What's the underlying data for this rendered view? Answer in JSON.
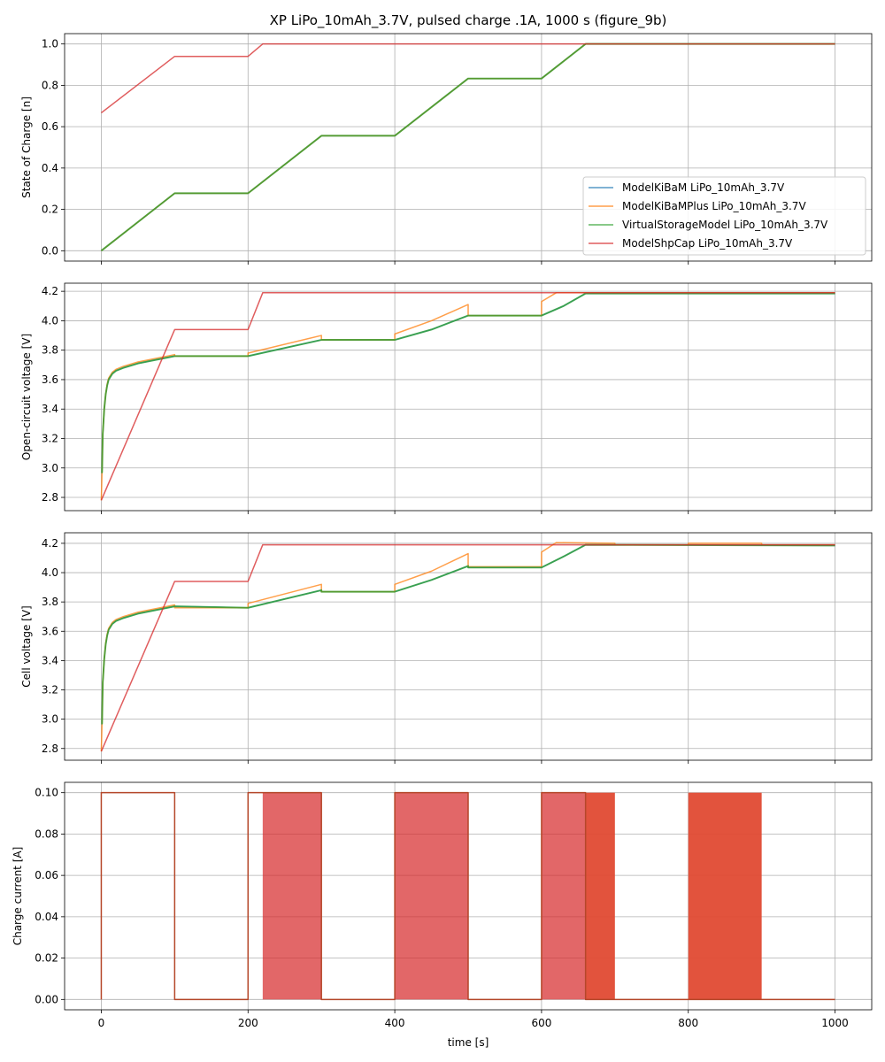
{
  "title": "XP LiPo_10mAh_3.7V, pulsed charge .1A, 1000 s (figure_9b)",
  "colors": {
    "ModelKiBaM": "#1f77b4",
    "ModelKiBaMPlus": "#ff7f0e",
    "VirtualStorageModel": "#2ca02c",
    "ModelShpCap": "#d62728",
    "overlap_fill": "#e04a33",
    "overlap_line": "#b5472a"
  },
  "chart_data": [
    {
      "type": "line",
      "ylabel": "State of Charge [n]",
      "xlim": [
        -50,
        1050
      ],
      "ylim": [
        -0.05,
        1.05
      ],
      "yticks": [
        "0.0",
        "0.2",
        "0.4",
        "0.6",
        "0.8",
        "1.0"
      ],
      "yvals": [
        0,
        0.2,
        0.4,
        0.6,
        0.8,
        1.0
      ],
      "grid": true,
      "legend": "lower-right",
      "series": [
        {
          "name": "ModelKiBaM LiPo_10mAh_3.7V",
          "key": "ModelKiBaM",
          "x": [
            0,
            100,
            200,
            300,
            400,
            500,
            600,
            660,
            1000
          ],
          "y": [
            0,
            0.278,
            0.278,
            0.556,
            0.556,
            0.833,
            0.833,
            1,
            1
          ]
        },
        {
          "name": "ModelKiBaMPlus LiPo_10mAh_3.7V",
          "key": "ModelKiBaMPlus",
          "x": [
            0,
            100,
            200,
            300,
            400,
            500,
            600,
            660,
            1000
          ],
          "y": [
            0,
            0.278,
            0.278,
            0.556,
            0.556,
            0.833,
            0.833,
            1,
            1
          ]
        },
        {
          "name": "VirtualStorageModel LiPo_10mAh_3.7V",
          "key": "VirtualStorageModel",
          "x": [
            0,
            100,
            200,
            300,
            400,
            500,
            600,
            660,
            1000
          ],
          "y": [
            0,
            0.278,
            0.278,
            0.556,
            0.556,
            0.833,
            0.833,
            1,
            1
          ]
        },
        {
          "name": "ModelShpCap LiPo_10mAh_3.7V",
          "key": "ModelShpCap",
          "x": [
            0,
            100,
            200,
            220,
            1000
          ],
          "y": [
            0.667,
            0.94,
            0.94,
            1,
            1
          ]
        }
      ]
    },
    {
      "type": "line",
      "ylabel": "Open-circuit voltage [V]",
      "xlim": [
        -50,
        1050
      ],
      "ylim": [
        2.71,
        4.255
      ],
      "yticks": [
        "2.8",
        "3.0",
        "3.2",
        "3.4",
        "3.6",
        "3.8",
        "4.0",
        "4.2"
      ],
      "yvals": [
        2.8,
        3.0,
        3.2,
        3.4,
        3.6,
        3.8,
        4.0,
        4.2
      ],
      "grid": true,
      "series": [
        {
          "key": "ModelKiBaM",
          "x": [
            0,
            1,
            2,
            4,
            6,
            8,
            10,
            15,
            20,
            30,
            50,
            100,
            200,
            300,
            400,
            450,
            500,
            600,
            630,
            660,
            1000
          ],
          "y": [
            2.97,
            2.97,
            3.23,
            3.4,
            3.5,
            3.56,
            3.6,
            3.64,
            3.66,
            3.68,
            3.71,
            3.76,
            3.76,
            3.87,
            3.87,
            3.94,
            4.035,
            4.035,
            4.1,
            4.185,
            4.185
          ]
        },
        {
          "key": "ModelKiBaMPlus",
          "x": [
            0,
            1,
            2,
            4,
            6,
            8,
            10,
            15,
            20,
            30,
            50,
            100,
            100,
            200,
            200,
            300,
            300,
            400,
            400,
            450,
            500,
            500,
            600,
            600,
            620,
            1000
          ],
          "y": [
            2.78,
            2.97,
            3.23,
            3.4,
            3.5,
            3.57,
            3.61,
            3.65,
            3.67,
            3.69,
            3.72,
            3.77,
            3.76,
            3.76,
            3.78,
            3.9,
            3.87,
            3.87,
            3.91,
            4.0,
            4.11,
            4.035,
            4.035,
            4.13,
            4.19,
            4.19
          ]
        },
        {
          "key": "VirtualStorageModel",
          "x": [
            0,
            1,
            2,
            4,
            6,
            8,
            10,
            15,
            20,
            30,
            50,
            100,
            200,
            300,
            400,
            450,
            500,
            600,
            630,
            660,
            1000
          ],
          "y": [
            2.97,
            2.97,
            3.23,
            3.4,
            3.5,
            3.56,
            3.6,
            3.64,
            3.66,
            3.68,
            3.71,
            3.76,
            3.76,
            3.87,
            3.87,
            3.94,
            4.035,
            4.035,
            4.1,
            4.185,
            4.185
          ]
        },
        {
          "key": "ModelShpCap",
          "x": [
            0,
            100,
            200,
            220,
            1000
          ],
          "y": [
            2.78,
            3.94,
            3.94,
            4.19,
            4.19
          ]
        }
      ]
    },
    {
      "type": "line",
      "ylabel": "Cell voltage [V]",
      "xlim": [
        -50,
        1050
      ],
      "ylim": [
        2.72,
        4.272
      ],
      "yticks": [
        "2.8",
        "3.0",
        "3.2",
        "3.4",
        "3.6",
        "3.8",
        "4.0",
        "4.2"
      ],
      "yvals": [
        2.8,
        3.0,
        3.2,
        3.4,
        3.6,
        3.8,
        4.0,
        4.2
      ],
      "grid": true,
      "series": [
        {
          "key": "ModelKiBaM",
          "x": [
            0,
            1,
            2,
            4,
            6,
            8,
            10,
            15,
            20,
            30,
            50,
            100,
            200,
            300,
            300,
            400,
            450,
            500,
            500,
            600,
            630,
            660,
            1000
          ],
          "y": [
            2.97,
            2.97,
            3.25,
            3.41,
            3.51,
            3.57,
            3.61,
            3.65,
            3.67,
            3.69,
            3.72,
            3.77,
            3.76,
            3.88,
            3.87,
            3.87,
            3.95,
            4.045,
            4.035,
            4.035,
            4.11,
            4.19,
            4.185
          ]
        },
        {
          "key": "ModelKiBaMPlus",
          "x": [
            0,
            1,
            2,
            4,
            6,
            8,
            10,
            15,
            20,
            30,
            50,
            100,
            100,
            200,
            200,
            300,
            300,
            400,
            400,
            450,
            500,
            500,
            600,
            600,
            620,
            700,
            700,
            800,
            800,
            900,
            900,
            1000
          ],
          "y": [
            2.78,
            2.97,
            3.25,
            3.41,
            3.52,
            3.58,
            3.62,
            3.66,
            3.68,
            3.7,
            3.73,
            3.78,
            3.76,
            3.76,
            3.79,
            3.92,
            3.87,
            3.87,
            3.92,
            4.01,
            4.13,
            4.04,
            4.04,
            4.14,
            4.205,
            4.2,
            4.19,
            4.19,
            4.2,
            4.2,
            4.19,
            4.19
          ]
        },
        {
          "key": "VirtualStorageModel",
          "x": [
            0,
            1,
            2,
            4,
            6,
            8,
            10,
            15,
            20,
            30,
            50,
            100,
            200,
            300,
            300,
            400,
            450,
            500,
            500,
            600,
            630,
            660,
            1000
          ],
          "y": [
            2.97,
            2.97,
            3.25,
            3.41,
            3.51,
            3.57,
            3.61,
            3.65,
            3.67,
            3.69,
            3.72,
            3.77,
            3.76,
            3.88,
            3.87,
            3.87,
            3.95,
            4.045,
            4.035,
            4.035,
            4.11,
            4.19,
            4.185
          ]
        },
        {
          "key": "ModelShpCap",
          "x": [
            0,
            100,
            200,
            220,
            1000
          ],
          "y": [
            2.78,
            3.94,
            3.94,
            4.19,
            4.19
          ]
        }
      ]
    },
    {
      "type": "line",
      "ylabel": "Charge current [A]",
      "xlabel": "time [s]",
      "xlim": [
        -50,
        1050
      ],
      "ylim": [
        -0.005,
        0.105
      ],
      "yticks": [
        "0.00",
        "0.02",
        "0.04",
        "0.06",
        "0.08",
        "0.10"
      ],
      "yvals": [
        0,
        0.02,
        0.04,
        0.06,
        0.08,
        0.1
      ],
      "xticks": [
        "0",
        "200",
        "400",
        "600",
        "800",
        "1000"
      ],
      "xvals": [
        0,
        200,
        400,
        600,
        800,
        1000
      ],
      "grid": true,
      "series": [
        {
          "key": "overlap_line",
          "x": [
            0,
            0,
            100,
            100,
            200,
            200,
            300,
            300,
            400,
            400,
            500,
            500,
            600,
            600,
            660,
            660,
            1000
          ],
          "y": [
            0,
            0.1,
            0.1,
            0,
            0,
            0.1,
            0.1,
            0,
            0,
            0.1,
            0.1,
            0,
            0,
            0.1,
            0.1,
            0,
            0
          ]
        }
      ],
      "pulsed_regions": [
        {
          "key": "ModelShpCap",
          "from": 220,
          "to": 300,
          "value": 0.1
        },
        {
          "key": "ModelShpCap",
          "from": 400,
          "to": 500,
          "value": 0.1
        },
        {
          "key": "ModelShpCap",
          "from": 600,
          "to": 660,
          "value": 0.1
        },
        {
          "key": "overlap_fill",
          "from": 660,
          "to": 700,
          "value": 0.1
        },
        {
          "key": "overlap_fill",
          "from": 800,
          "to": 900,
          "value": 0.1
        }
      ]
    }
  ]
}
